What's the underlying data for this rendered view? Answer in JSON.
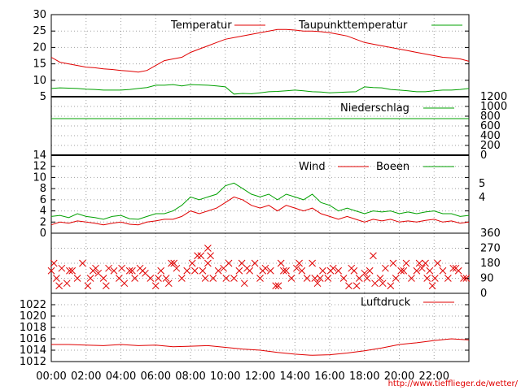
{
  "url": "http://www.tiefflieger.de/wetter/",
  "xaxis": {
    "ticks": [
      "00:00",
      "02:00",
      "04:00",
      "06:00",
      "08:00",
      "10:00",
      "12:00",
      "14:00",
      "16:00",
      "18:00",
      "20:00",
      "22:00"
    ],
    "range_hours": [
      0,
      24
    ]
  },
  "colors": {
    "red": "#e00000",
    "green": "#00a000",
    "grid": "#a0a0a0"
  },
  "chart_data": [
    {
      "type": "line",
      "ylim": [
        5,
        30
      ],
      "yticks": [
        "5",
        "10",
        "15",
        "20",
        "25",
        "30"
      ],
      "series": [
        {
          "name": "Temperatur",
          "color": "#e00000",
          "x": [
            0,
            0.5,
            1,
            1.5,
            2,
            2.5,
            3,
            3.5,
            4,
            4.5,
            5,
            5.5,
            6,
            6.5,
            7,
            7.5,
            8,
            8.5,
            9,
            9.5,
            10,
            10.5,
            11,
            11.5,
            12,
            12.5,
            13,
            13.5,
            14,
            14.5,
            15,
            15.5,
            16,
            16.5,
            17,
            17.5,
            18,
            18.5,
            19,
            19.5,
            20,
            20.5,
            21,
            21.5,
            22,
            22.5,
            23,
            23.5,
            24
          ],
          "y": [
            17,
            15.5,
            15,
            14.5,
            14,
            13.8,
            13.5,
            13.3,
            13,
            12.8,
            12.5,
            13,
            14.5,
            16,
            16.5,
            17,
            18.5,
            19.5,
            20.5,
            21.5,
            22.5,
            23,
            23.5,
            24,
            24.5,
            25,
            25.5,
            25.5,
            25.3,
            25,
            25,
            24.8,
            24.5,
            24,
            23.5,
            22.5,
            21.5,
            21,
            20.5,
            20,
            19.5,
            19,
            18.5,
            18,
            17.5,
            17,
            16.8,
            16.5,
            15.8
          ]
        },
        {
          "name": "Taupunkttemperatur",
          "color": "#00a000",
          "x": [
            0,
            0.5,
            1,
            1.5,
            2,
            2.5,
            3,
            3.5,
            4,
            4.5,
            5,
            5.5,
            6,
            6.5,
            7,
            7.5,
            8,
            8.5,
            9,
            9.5,
            10,
            10.5,
            11,
            11.5,
            12,
            12.5,
            13,
            13.5,
            14,
            14.5,
            15,
            15.5,
            16,
            16.5,
            17,
            17.5,
            18,
            18.5,
            19,
            19.5,
            20,
            20.5,
            21,
            21.5,
            22,
            22.5,
            23,
            23.5,
            24
          ],
          "y": [
            7.5,
            7.7,
            7.6,
            7.5,
            7.3,
            7.2,
            7,
            7,
            7,
            7.2,
            7.5,
            7.8,
            8.5,
            8.5,
            8.7,
            8.3,
            8.7,
            8.6,
            8.5,
            8.3,
            8,
            5.8,
            6,
            5.9,
            6.2,
            6.5,
            6.6,
            6.8,
            7,
            6.8,
            6.5,
            6.4,
            6.2,
            6.3,
            6.4,
            6.5,
            8,
            7.8,
            7.7,
            7.2,
            7,
            6.8,
            6.5,
            6.5,
            6.8,
            7,
            7,
            7.2,
            7.5
          ]
        }
      ]
    },
    {
      "type": "line",
      "ylim": [
        0,
        1200
      ],
      "yticks": [
        "0",
        "200",
        "400",
        "600",
        "800",
        "1000",
        "1200"
      ],
      "series": [
        {
          "name": "Niederschlag",
          "color": "#00a000",
          "x": [
            0,
            24
          ],
          "y": [
            750,
            750
          ]
        }
      ]
    },
    {
      "type": "line",
      "ylim": [
        0,
        14
      ],
      "yticks": [
        "0",
        "2",
        "4",
        "6",
        "8",
        "10",
        "12",
        "14"
      ],
      "right_labels": [
        "4",
        "5"
      ],
      "series": [
        {
          "name": "Wind",
          "color": "#e00000",
          "x": [
            0,
            0.5,
            1,
            1.5,
            2,
            2.5,
            3,
            3.5,
            4,
            4.5,
            5,
            5.5,
            6,
            6.5,
            7,
            7.5,
            8,
            8.5,
            9,
            9.5,
            10,
            10.5,
            11,
            11.5,
            12,
            12.5,
            13,
            13.5,
            14,
            14.5,
            15,
            15.5,
            16,
            16.5,
            17,
            17.5,
            18,
            18.5,
            19,
            19.5,
            20,
            20.5,
            21,
            21.5,
            22,
            22.5,
            23,
            23.5,
            24
          ],
          "y": [
            1.5,
            2,
            1.8,
            2.2,
            2,
            1.8,
            1.5,
            1.8,
            2,
            1.6,
            1.5,
            2,
            2.2,
            2.5,
            2.5,
            3,
            4,
            3.5,
            4,
            4.5,
            5.5,
            6.5,
            6,
            5,
            4.5,
            5,
            4,
            5,
            4.5,
            4,
            4.5,
            3.5,
            3,
            2.5,
            3,
            2.5,
            2,
            2.5,
            2.2,
            2.5,
            2,
            2.2,
            2,
            2.3,
            2.5,
            2,
            2.2,
            1.8,
            2
          ]
        },
        {
          "name": "Boeen",
          "color": "#00a000",
          "x": [
            0,
            0.5,
            1,
            1.5,
            2,
            2.5,
            3,
            3.5,
            4,
            4.5,
            5,
            5.5,
            6,
            6.5,
            7,
            7.5,
            8,
            8.5,
            9,
            9.5,
            10,
            10.5,
            11,
            11.5,
            12,
            12.5,
            13,
            13.5,
            14,
            14.5,
            15,
            15.5,
            16,
            16.5,
            17,
            17.5,
            18,
            18.5,
            19,
            19.5,
            20,
            20.5,
            21,
            21.5,
            22,
            22.5,
            23,
            23.5,
            24
          ],
          "y": [
            3,
            3.2,
            2.8,
            3.5,
            3,
            2.8,
            2.5,
            3,
            3.2,
            2.6,
            2.5,
            3,
            3.5,
            3.5,
            4,
            5,
            6.5,
            6,
            6.5,
            7,
            8.5,
            9,
            8,
            7,
            6.5,
            7,
            6,
            7,
            6.5,
            6,
            7,
            5.5,
            5,
            4,
            4.5,
            4,
            3.5,
            4,
            3.8,
            4,
            3.5,
            3.8,
            3.5,
            3.8,
            4,
            3.5,
            3.5,
            3,
            3.2
          ]
        }
      ]
    },
    {
      "type": "scatter",
      "ylim": [
        0,
        360
      ],
      "yticks": [
        "0",
        "90",
        "180",
        "270",
        "360"
      ],
      "series": [
        {
          "name": "",
          "color": "#e00000",
          "x": [
            0,
            0.3,
            0.6,
            0.9,
            1.2,
            1.5,
            1.8,
            2.1,
            2.4,
            2.7,
            3,
            3.3,
            3.6,
            3.9,
            4.2,
            4.5,
            4.8,
            5.1,
            5.4,
            5.7,
            6,
            6.3,
            6.6,
            6.9,
            7.2,
            7.5,
            7.8,
            8.1,
            8.4,
            8.7,
            9,
            9.3,
            9.6,
            9.9,
            10.2,
            10.5,
            10.8,
            11.1,
            11.4,
            11.7,
            12,
            12.3,
            12.6,
            12.9,
            13.2,
            13.5,
            13.8,
            14.1,
            14.4,
            14.7,
            15,
            15.3,
            15.6,
            15.9,
            16.2,
            16.5,
            16.8,
            17.1,
            17.4,
            17.7,
            18,
            18.3,
            18.6,
            18.9,
            19.2,
            19.5,
            19.8,
            20.1,
            20.4,
            20.7,
            21,
            21.3,
            21.6,
            21.9,
            22.2,
            22.5,
            22.8,
            23.1,
            23.4,
            23.7,
            0.15,
            1.05,
            2.25,
            3.15,
            4.05,
            5.25,
            6.15,
            7.05,
            8.25,
            9.15,
            10.05,
            11.25,
            12.15,
            13.05,
            14.25,
            15.15,
            16.05,
            17.25,
            18.15,
            19.05,
            20.25,
            21.15,
            22.05,
            23.25,
            0.45,
            2.55,
            4.65,
            6.75,
            8.85,
            10.95,
            13.35,
            15.45,
            17.55,
            19.65,
            21.75,
            23.85,
            8.6,
            9.0,
            18.5,
            21.5
          ],
          "y": [
            135,
            90,
            150,
            60,
            135,
            90,
            180,
            45,
            135,
            120,
            90,
            150,
            135,
            90,
            60,
            135,
            90,
            150,
            120,
            90,
            45,
            135,
            90,
            180,
            150,
            90,
            135,
            180,
            225,
            135,
            180,
            90,
            135,
            150,
            180,
            90,
            135,
            60,
            135,
            180,
            90,
            150,
            135,
            45,
            180,
            135,
            90,
            150,
            135,
            90,
            180,
            60,
            135,
            90,
            150,
            135,
            90,
            45,
            135,
            90,
            120,
            135,
            60,
            90,
            150,
            45,
            90,
            135,
            180,
            90,
            135,
            150,
            90,
            45,
            180,
            135,
            90,
            150,
            135,
            90,
            180,
            135,
            90,
            45,
            150,
            135,
            90,
            180,
            135,
            225,
            90,
            150,
            135,
            45,
            180,
            90,
            135,
            150,
            90,
            60,
            135,
            180,
            90,
            150,
            45,
            150,
            135,
            60,
            90,
            180,
            135,
            90,
            45,
            180,
            135,
            90,
            225,
            270,
            225,
            180
          ]
        }
      ]
    },
    {
      "type": "line",
      "ylim": [
        1012,
        1024
      ],
      "yticks": [
        "1012",
        "1014",
        "1016",
        "1018",
        "1020",
        "1022"
      ],
      "series": [
        {
          "name": "Luftdruck",
          "color": "#e00000",
          "x": [
            0,
            1,
            2,
            3,
            4,
            5,
            6,
            7,
            8,
            9,
            10,
            11,
            12,
            13,
            14,
            15,
            16,
            17,
            18,
            19,
            20,
            21,
            22,
            23,
            24
          ],
          "y": [
            1015,
            1015,
            1014.9,
            1014.8,
            1015,
            1014.8,
            1014.9,
            1014.6,
            1014.7,
            1014.8,
            1014.5,
            1014.2,
            1014,
            1013.6,
            1013.3,
            1013.1,
            1013.2,
            1013.5,
            1013.9,
            1014.4,
            1015,
            1015.3,
            1015.7,
            1016,
            1015.8
          ]
        }
      ]
    }
  ]
}
